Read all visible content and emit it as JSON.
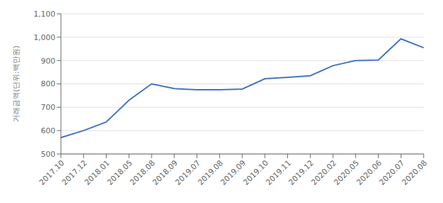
{
  "chart_data": {
    "type": "line",
    "ylabel": "거래금액(단위:백만원)",
    "categories": [
      "2017.10",
      "2017.12",
      "2018.01",
      "2018.05",
      "2018.08",
      "2018.09",
      "2019.07",
      "2019.08",
      "2019.09",
      "2019.10",
      "2019.11",
      "2019.12",
      "2020.02",
      "2020.05",
      "2020.06",
      "2020.07",
      "2020.08"
    ],
    "values": [
      570,
      600,
      637,
      730,
      800,
      780,
      775,
      775,
      778,
      822,
      828,
      835,
      878,
      900,
      902,
      993,
      955
    ],
    "color": "#4472c4",
    "ylim": [
      500,
      1100
    ],
    "yticks": [
      500,
      600,
      700,
      800,
      900,
      {
        "value": 1000,
        "label": "1,000"
      },
      {
        "value": 1100,
        "label": "1,100"
      }
    ],
    "grid": true
  }
}
